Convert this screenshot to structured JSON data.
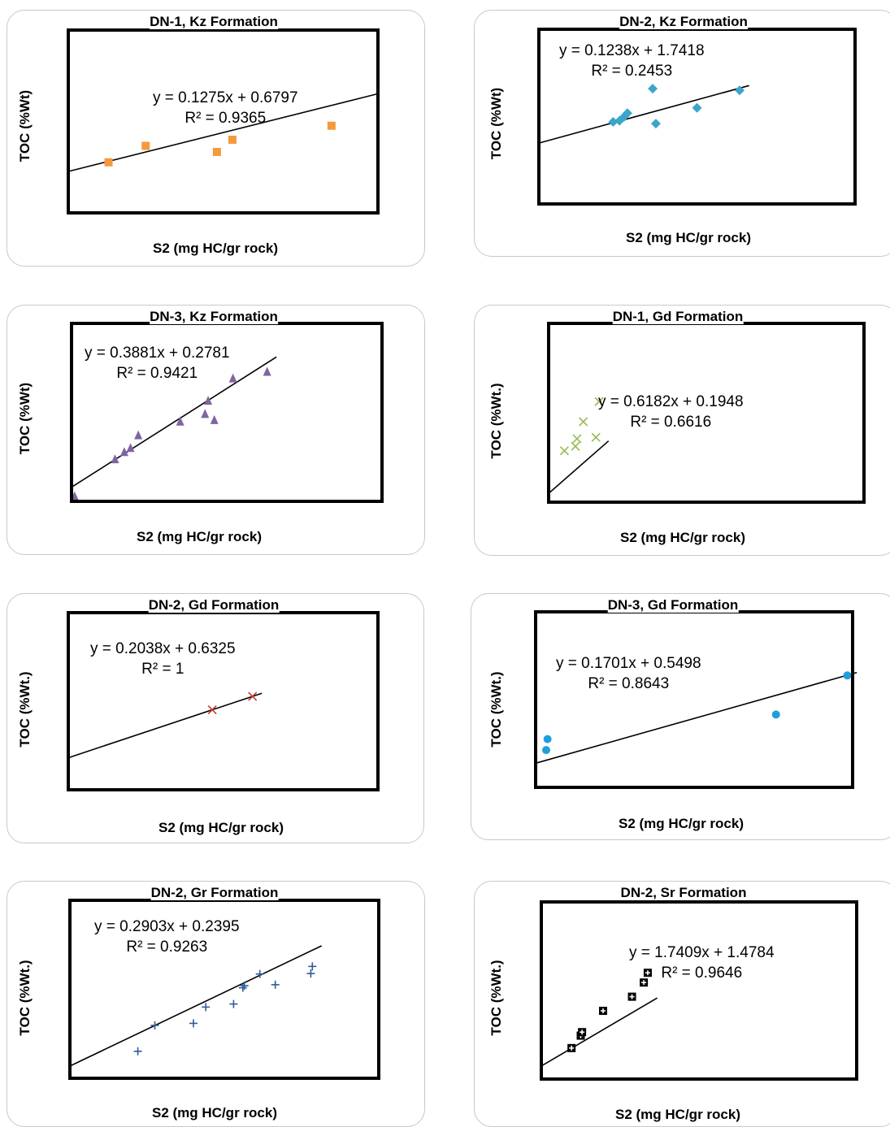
{
  "chart_data": [
    {
      "type": "scatter",
      "title": "DN-1, Kz Formation",
      "xlabel": "S2 (mg HC/gr rock)",
      "ylabel": "TOC (%Wt)",
      "marker": "square",
      "color": "#f59a3c",
      "xlim": [
        0,
        10
      ],
      "ylim": [
        0,
        3
      ],
      "points": [
        [
          1.3,
          0.83
        ],
        [
          2.5,
          1.1
        ],
        [
          4.8,
          1.0
        ],
        [
          5.3,
          1.2
        ],
        [
          8.5,
          1.43
        ]
      ],
      "trendline": {
        "slope": 0.1275,
        "intercept": 0.6797
      },
      "equation": "y = 0.1275x + 0.6797",
      "r2": "R² = 0.9365"
    },
    {
      "type": "scatter",
      "title": "DN-2, Kz Formation",
      "xlabel": "S2 (mg HC/gr rock)",
      "ylabel": "TOC (%Wt)",
      "marker": "diamond",
      "color": "#3aa6c9",
      "xlim": [
        0,
        20
      ],
      "ylim": [
        0,
        5
      ],
      "points": [
        [
          4.7,
          2.35
        ],
        [
          5.1,
          2.38
        ],
        [
          5.4,
          2.5
        ],
        [
          5.6,
          2.6
        ],
        [
          7.2,
          3.3
        ],
        [
          7.4,
          2.3
        ],
        [
          10.0,
          2.75
        ],
        [
          12.7,
          3.25
        ]
      ],
      "trendline": {
        "slope": 0.1238,
        "intercept": 1.7418
      },
      "equation": "y = 0.1238x + 1.7418",
      "r2": "R² = 0.2453"
    },
    {
      "type": "scatter",
      "title": "DN-3, Kz Formation",
      "xlabel": "S2 (mg HC/gr rock)",
      "ylabel": "TOC (%Wt)",
      "marker": "triangle",
      "color": "#8064a2",
      "xlim": [
        0,
        10
      ],
      "ylim": [
        0,
        3.5
      ],
      "points": [
        [
          0.1,
          0.1
        ],
        [
          1.4,
          0.83
        ],
        [
          1.7,
          0.97
        ],
        [
          1.9,
          1.05
        ],
        [
          2.15,
          1.3
        ],
        [
          3.5,
          1.57
        ],
        [
          4.3,
          1.72
        ],
        [
          4.4,
          1.98
        ],
        [
          4.6,
          1.6
        ],
        [
          5.2,
          2.42
        ],
        [
          6.3,
          2.55
        ]
      ],
      "trendline": {
        "slope": 0.3881,
        "intercept": 0.2781
      },
      "equation": "y = 0.3881x + 0.2781",
      "r2": "R² = 0.9421"
    },
    {
      "type": "scatter",
      "title": "DN-1, Gd Formation",
      "xlabel": "S2 (mg HC/gr rock)",
      "ylabel": "TOC (%Wt.)",
      "marker": "x",
      "color": "#9bbb59",
      "xlim": [
        0,
        10
      ],
      "ylim": [
        0,
        4
      ],
      "points": [
        [
          0.5,
          1.15
        ],
        [
          0.85,
          1.25
        ],
        [
          0.9,
          1.42
        ],
        [
          1.1,
          1.8
        ],
        [
          1.5,
          1.45
        ],
        [
          1.6,
          2.25
        ]
      ],
      "trendline": {
        "slope": 0.6182,
        "intercept": 0.1948
      },
      "equation": "y = 0.6182x + 0.1948",
      "r2": "R² = 0.6616"
    },
    {
      "type": "scatter",
      "title": "DN-2, Gd Formation",
      "xlabel": "S2 (mg HC/gr rock)",
      "ylabel": "TOC (%Wt.)",
      "marker": "x",
      "color": "#c0392b",
      "xlim": [
        0,
        10
      ],
      "ylim": [
        0,
        3.5
      ],
      "points": [
        [
          4.65,
          1.58
        ],
        [
          5.95,
          1.845
        ]
      ],
      "trendline": {
        "slope": 0.2038,
        "intercept": 0.6325
      },
      "equation": "y = 0.2038x + 0.6325",
      "r2": "R² = 1"
    },
    {
      "type": "scatter",
      "title": "DN-3, Gd Formation",
      "xlabel": "S2 (mg HC/gr rock)",
      "ylabel": "TOC (%Wt.)",
      "marker": "circle",
      "color": "#1fa0dc",
      "xlim": [
        0,
        12
      ],
      "ylim": [
        0,
        4
      ],
      "points": [
        [
          0.4,
          0.85
        ],
        [
          0.45,
          1.1
        ],
        [
          9.1,
          1.66
        ],
        [
          11.8,
          2.55
        ]
      ],
      "trendline": {
        "slope": 0.1701,
        "intercept": 0.5498
      },
      "equation": "y = 0.1701x + 0.5498",
      "r2": "R² = 0.8643"
    },
    {
      "type": "scatter",
      "title": "DN-2, Gr Formation",
      "xlabel": "S2 (mg HC/gr rock)",
      "ylabel": "TOC (%Wt.)",
      "marker": "plus",
      "color": "#2e5c9a",
      "xlim": [
        0,
        10
      ],
      "ylim": [
        0,
        3.5
      ],
      "points": [
        [
          2.2,
          0.53
        ],
        [
          2.75,
          1.04
        ],
        [
          4.0,
          1.08
        ],
        [
          4.4,
          1.4
        ],
        [
          5.3,
          1.46
        ],
        [
          5.6,
          1.78
        ],
        [
          5.65,
          1.82
        ],
        [
          6.15,
          2.05
        ],
        [
          6.65,
          1.84
        ],
        [
          7.8,
          2.06
        ],
        [
          7.85,
          2.2
        ]
      ],
      "trendline": {
        "slope": 0.2903,
        "intercept": 0.2395
      },
      "equation": "y = 0.2903x + 0.2395",
      "r2": "R² = 0.9263"
    },
    {
      "type": "scatter",
      "title": "DN-2, Sr Formation",
      "xlabel": "S2 (mg HC/gr rock)",
      "ylabel": "TOC (%Wt.)",
      "marker": "square-plus",
      "color": "#000000",
      "xlim": [
        0,
        12
      ],
      "ylim": [
        0,
        20
      ],
      "points": [
        [
          1.15,
          3.5
        ],
        [
          1.5,
          4.9
        ],
        [
          1.55,
          5.3
        ],
        [
          2.35,
          7.7
        ],
        [
          3.45,
          9.3
        ],
        [
          3.9,
          10.9
        ],
        [
          4.05,
          12.0
        ]
      ],
      "trendline": {
        "slope": 1.7409,
        "intercept": 1.4784
      },
      "equation": "y = 1.7409x + 1.4784",
      "r2": "R² = 0.9646"
    }
  ]
}
